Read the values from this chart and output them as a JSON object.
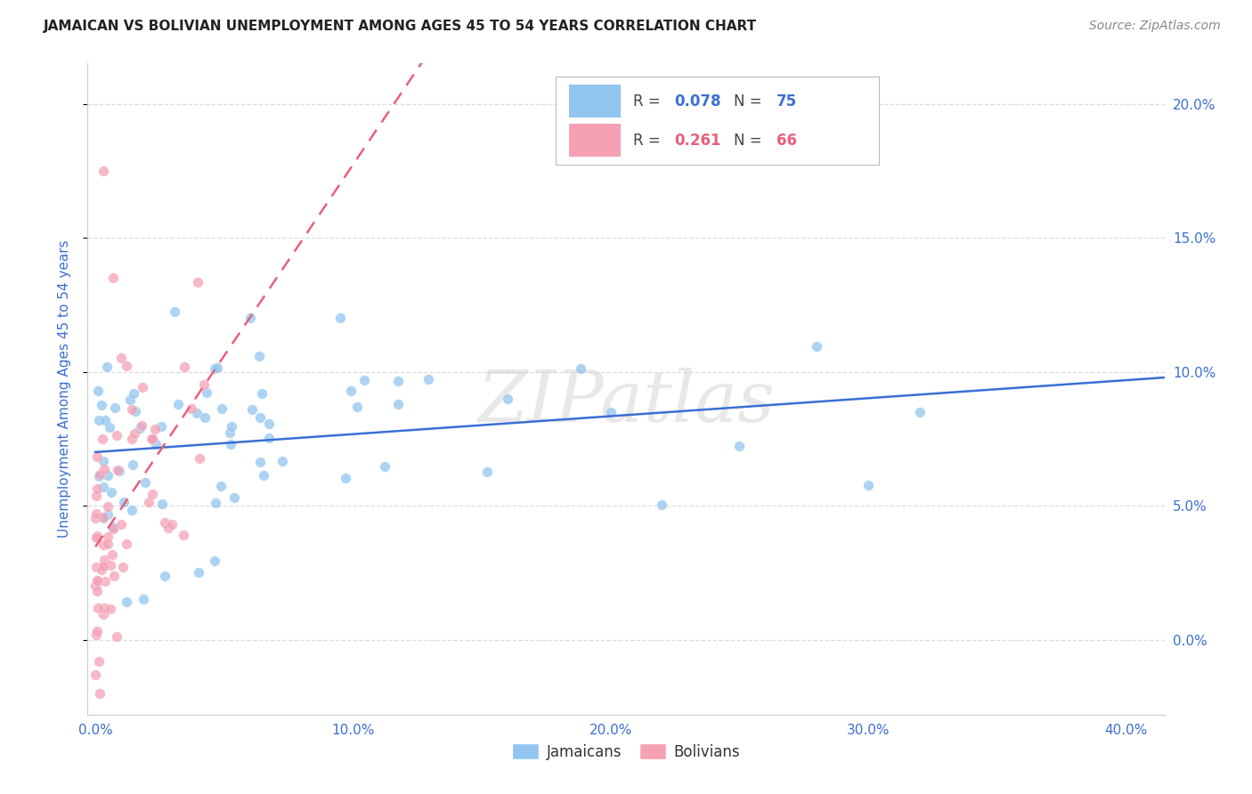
{
  "title": "JAMAICAN VS BOLIVIAN UNEMPLOYMENT AMONG AGES 45 TO 54 YEARS CORRELATION CHART",
  "source": "Source: ZipAtlas.com",
  "ylabel_label": "Unemployment Among Ages 45 to 54 years",
  "xlim": [
    -0.003,
    0.415
  ],
  "ylim": [
    -0.028,
    0.215
  ],
  "x_tick_vals": [
    0.0,
    0.1,
    0.2,
    0.3,
    0.4
  ],
  "x_tick_labels": [
    "0.0%",
    "10.0%",
    "20.0%",
    "30.0%",
    "40.0%"
  ],
  "y_tick_vals": [
    0.0,
    0.05,
    0.1,
    0.15,
    0.2
  ],
  "y_tick_labels": [
    "0.0%",
    "5.0%",
    "10.0%",
    "15.0%",
    "20.0%"
  ],
  "watermark": "ZIPatlas",
  "jamaicans_color": "#92C5F0",
  "bolivians_color": "#F5A0B5",
  "trend_jamaicans_color": "#3B6FD4",
  "trend_bolivians_color": "#E8607A",
  "background_color": "#FFFFFF",
  "grid_color": "#DDDDDD",
  "title_color": "#222222",
  "axis_label_color": "#3B6FD4",
  "tick_label_color": "#3B6FD4",
  "legend_r1": "0.078",
  "legend_n1": "75",
  "legend_r2": "0.261",
  "legend_n2": "66"
}
